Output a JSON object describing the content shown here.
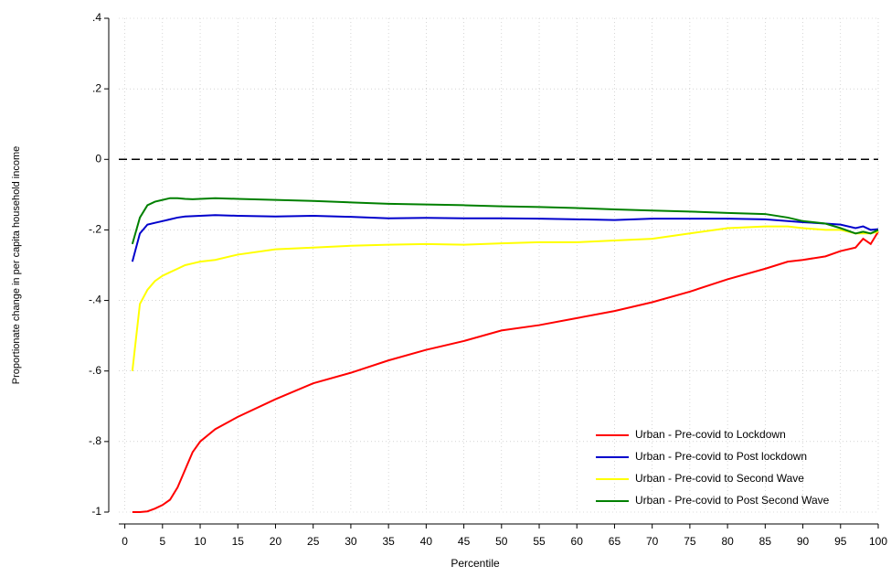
{
  "chart_data": {
    "type": "line",
    "x_label": "Percentile",
    "y_label": "Proportionate change in per capita household income",
    "x": [
      1,
      2,
      3,
      4,
      5,
      6,
      7,
      8,
      9,
      10,
      12,
      15,
      20,
      25,
      30,
      35,
      40,
      45,
      50,
      55,
      60,
      65,
      70,
      75,
      80,
      85,
      88,
      90,
      93,
      95,
      97,
      98,
      99,
      100
    ],
    "series": [
      {
        "name": "Urban - Pre-covid to Lockdown",
        "color": "#ff0000",
        "values": [
          -1.0,
          -1.0,
          -0.998,
          -0.99,
          -0.98,
          -0.965,
          -0.93,
          -0.88,
          -0.83,
          -0.8,
          -0.765,
          -0.73,
          -0.68,
          -0.635,
          -0.605,
          -0.57,
          -0.54,
          -0.515,
          -0.485,
          -0.47,
          -0.45,
          -0.43,
          -0.405,
          -0.375,
          -0.34,
          -0.31,
          -0.29,
          -0.285,
          -0.275,
          -0.26,
          -0.25,
          -0.225,
          -0.24,
          -0.205
        ]
      },
      {
        "name": "Urban - Pre-covid to Post lockdown",
        "color": "#0000cc",
        "values": [
          -0.29,
          -0.21,
          -0.185,
          -0.18,
          -0.175,
          -0.17,
          -0.165,
          -0.162,
          -0.161,
          -0.16,
          -0.158,
          -0.16,
          -0.162,
          -0.16,
          -0.163,
          -0.167,
          -0.166,
          -0.167,
          -0.167,
          -0.168,
          -0.17,
          -0.172,
          -0.168,
          -0.168,
          -0.168,
          -0.17,
          -0.175,
          -0.178,
          -0.182,
          -0.185,
          -0.195,
          -0.19,
          -0.2,
          -0.198
        ]
      },
      {
        "name": "Urban - Pre-covid to Second Wave",
        "color": "#ffff00",
        "values": [
          -0.6,
          -0.41,
          -0.37,
          -0.345,
          -0.33,
          -0.32,
          -0.31,
          -0.3,
          -0.295,
          -0.29,
          -0.285,
          -0.27,
          -0.255,
          -0.25,
          -0.245,
          -0.242,
          -0.24,
          -0.242,
          -0.238,
          -0.235,
          -0.235,
          -0.23,
          -0.225,
          -0.21,
          -0.195,
          -0.19,
          -0.19,
          -0.195,
          -0.2,
          -0.2,
          -0.21,
          -0.21,
          -0.21,
          -0.205
        ]
      },
      {
        "name": "Urban - Pre-covid to Post Second Wave",
        "color": "#008000",
        "values": [
          -0.24,
          -0.165,
          -0.13,
          -0.12,
          -0.115,
          -0.11,
          -0.11,
          -0.112,
          -0.113,
          -0.112,
          -0.11,
          -0.112,
          -0.115,
          -0.118,
          -0.122,
          -0.126,
          -0.128,
          -0.13,
          -0.133,
          -0.135,
          -0.138,
          -0.142,
          -0.145,
          -0.148,
          -0.152,
          -0.155,
          -0.165,
          -0.175,
          -0.182,
          -0.195,
          -0.21,
          -0.205,
          -0.21,
          -0.2
        ]
      }
    ],
    "xlim": [
      -0.8,
      100
    ],
    "xticks": [
      0,
      5,
      10,
      15,
      20,
      25,
      30,
      35,
      40,
      45,
      50,
      55,
      60,
      65,
      70,
      75,
      80,
      85,
      90,
      95,
      100
    ],
    "ylim": [
      -1,
      0.4
    ],
    "yticks": [
      {
        "value": 0.4,
        "label": ".4"
      },
      {
        "value": 0.2,
        "label": ".2"
      },
      0,
      {
        "value": -0.2,
        "label": "-.2"
      },
      {
        "value": -0.4,
        "label": "-.4"
      },
      {
        "value": -0.6,
        "label": "-.6"
      },
      {
        "value": -0.8,
        "label": "-.8"
      },
      {
        "value": -1,
        "label": "-1"
      }
    ],
    "reference_line": 0,
    "grid": true,
    "legend": "lower right"
  }
}
